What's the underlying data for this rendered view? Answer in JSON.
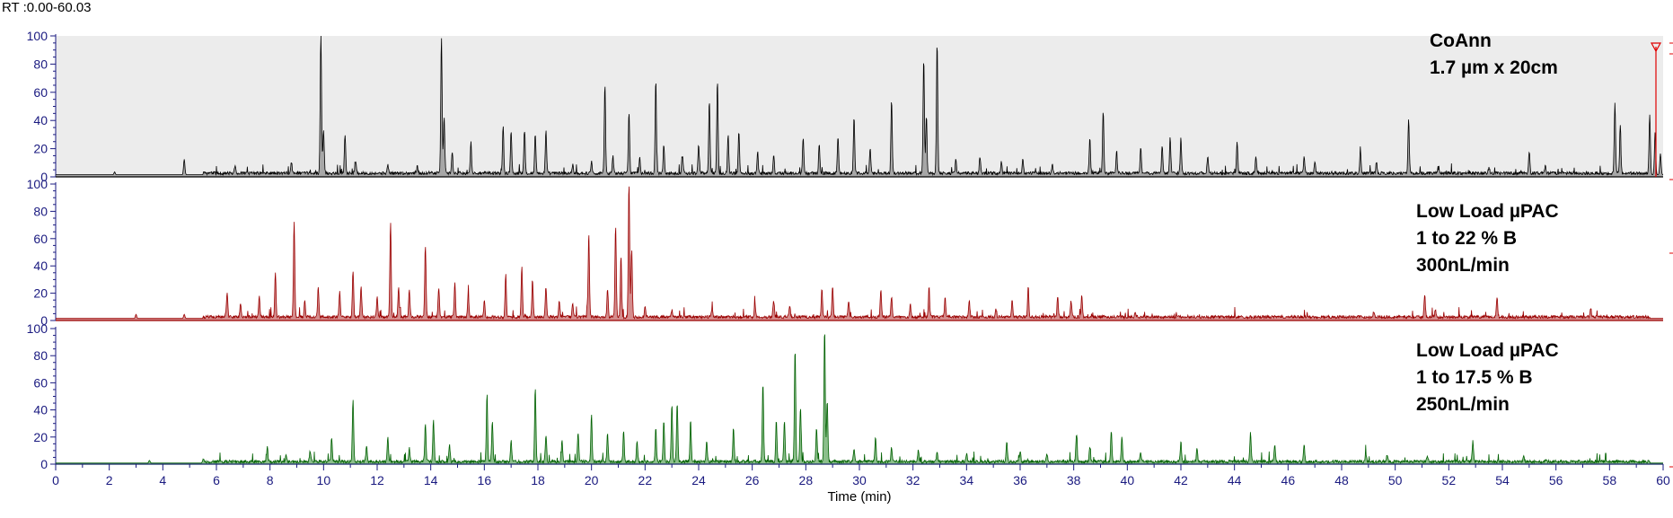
{
  "header": {
    "rt_range": "RT :0.00-60.03"
  },
  "chart_data": {
    "type": "line",
    "xlabel": "Time (min)",
    "xlim": [
      0,
      60
    ],
    "x_ticks": [
      0,
      2,
      4,
      6,
      8,
      10,
      12,
      14,
      16,
      18,
      20,
      22,
      24,
      26,
      28,
      30,
      32,
      34,
      36,
      38,
      40,
      42,
      44,
      46,
      48,
      50,
      52,
      54,
      56,
      58,
      60
    ],
    "ylim": [
      0,
      100
    ],
    "y_ticks": [
      0,
      20,
      40,
      60,
      80,
      100
    ],
    "grid": false,
    "panels": [
      {
        "annotation": [
          "CoAnn",
          "1.7 µm x 20cm"
        ],
        "color": "#000000",
        "fill": "#6f6f6f",
        "background": "#ececec",
        "baseline": 1.5,
        "peaks": [
          [
            2.2,
            2
          ],
          [
            4.8,
            11
          ],
          [
            6.7,
            6
          ],
          [
            8.8,
            8
          ],
          [
            9.9,
            99
          ],
          [
            10.0,
            30
          ],
          [
            10.8,
            28
          ],
          [
            11.2,
            8
          ],
          [
            12.4,
            6
          ],
          [
            13.5,
            5
          ],
          [
            14.4,
            97
          ],
          [
            14.5,
            40
          ],
          [
            14.8,
            15
          ],
          [
            15.5,
            22
          ],
          [
            16.7,
            34
          ],
          [
            17.0,
            30
          ],
          [
            17.5,
            30
          ],
          [
            17.9,
            28
          ],
          [
            18.3,
            30
          ],
          [
            19.3,
            6
          ],
          [
            20.0,
            8
          ],
          [
            20.5,
            63
          ],
          [
            20.8,
            12
          ],
          [
            21.4,
            44
          ],
          [
            21.8,
            12
          ],
          [
            22.4,
            66
          ],
          [
            22.7,
            20
          ],
          [
            23.4,
            12
          ],
          [
            24.0,
            20
          ],
          [
            24.4,
            52
          ],
          [
            24.7,
            65
          ],
          [
            25.1,
            27
          ],
          [
            25.5,
            30
          ],
          [
            26.2,
            15
          ],
          [
            26.8,
            12
          ],
          [
            27.9,
            25
          ],
          [
            28.5,
            20
          ],
          [
            29.2,
            25
          ],
          [
            29.8,
            40
          ],
          [
            30.4,
            17
          ],
          [
            31.2,
            52
          ],
          [
            32.4,
            82
          ],
          [
            32.5,
            40
          ],
          [
            32.9,
            93
          ],
          [
            33.6,
            10
          ],
          [
            34.5,
            12
          ],
          [
            35.3,
            8
          ],
          [
            36.1,
            10
          ],
          [
            37.2,
            6
          ],
          [
            38.6,
            25
          ],
          [
            39.1,
            45
          ],
          [
            39.6,
            15
          ],
          [
            40.5,
            18
          ],
          [
            41.3,
            20
          ],
          [
            41.6,
            25
          ],
          [
            42.0,
            26
          ],
          [
            43.0,
            12
          ],
          [
            44.1,
            22
          ],
          [
            44.8,
            12
          ],
          [
            46.6,
            12
          ],
          [
            47.0,
            8
          ],
          [
            48.7,
            16
          ],
          [
            49.3,
            8
          ],
          [
            50.5,
            38
          ],
          [
            51.6,
            4
          ],
          [
            53.5,
            4
          ],
          [
            55.0,
            15
          ],
          [
            55.6,
            5
          ],
          [
            58.2,
            50
          ],
          [
            58.4,
            35
          ],
          [
            59.5,
            42
          ],
          [
            59.7,
            30
          ],
          [
            59.9,
            15
          ]
        ]
      },
      {
        "annotation": [
          "Low Load µPAC",
          "1 to 22 % B",
          "300nL/min"
        ],
        "color": "#9a0000",
        "fill": "#b03030",
        "background": "#ffffff",
        "baseline": 1.5,
        "peaks": [
          [
            3.0,
            3
          ],
          [
            4.8,
            3
          ],
          [
            6.4,
            18
          ],
          [
            6.9,
            10
          ],
          [
            7.6,
            15
          ],
          [
            8.2,
            32
          ],
          [
            8.9,
            71
          ],
          [
            9.3,
            12
          ],
          [
            9.8,
            22
          ],
          [
            10.6,
            18
          ],
          [
            11.1,
            34
          ],
          [
            11.4,
            22
          ],
          [
            12.0,
            14
          ],
          [
            12.5,
            70
          ],
          [
            12.8,
            22
          ],
          [
            13.2,
            20
          ],
          [
            13.8,
            53
          ],
          [
            14.3,
            22
          ],
          [
            14.9,
            25
          ],
          [
            15.4,
            17
          ],
          [
            16.0,
            12
          ],
          [
            16.8,
            30
          ],
          [
            17.4,
            37
          ],
          [
            17.8,
            25
          ],
          [
            18.3,
            22
          ],
          [
            18.8,
            12
          ],
          [
            19.3,
            10
          ],
          [
            19.9,
            62
          ],
          [
            20.6,
            20
          ],
          [
            20.9,
            67
          ],
          [
            21.1,
            45
          ],
          [
            21.4,
            99
          ],
          [
            21.5,
            50
          ],
          [
            22.0,
            8
          ],
          [
            23.0,
            5
          ],
          [
            24.5,
            6
          ],
          [
            26.1,
            10
          ],
          [
            26.8,
            12
          ],
          [
            27.4,
            8
          ],
          [
            28.6,
            20
          ],
          [
            29.0,
            22
          ],
          [
            29.6,
            12
          ],
          [
            30.8,
            20
          ],
          [
            31.2,
            15
          ],
          [
            31.9,
            10
          ],
          [
            32.6,
            22
          ],
          [
            33.2,
            15
          ],
          [
            34.1,
            12
          ],
          [
            35.1,
            6
          ],
          [
            35.7,
            12
          ],
          [
            36.3,
            22
          ],
          [
            37.4,
            15
          ],
          [
            37.9,
            12
          ],
          [
            38.3,
            15
          ],
          [
            40.3,
            4
          ],
          [
            49.2,
            4
          ],
          [
            51.1,
            17
          ],
          [
            51.5,
            6
          ],
          [
            53.8,
            15
          ],
          [
            57.3,
            6
          ]
        ]
      },
      {
        "annotation": [
          "Low Load µPAC",
          "1 to 17.5 % B",
          "250nL/min"
        ],
        "color": "#006000",
        "fill": "#2e8b2e",
        "background": "#ffffff",
        "baseline": 0.8,
        "peaks": [
          [
            3.5,
            2
          ],
          [
            5.5,
            2
          ],
          [
            7.9,
            11
          ],
          [
            8.6,
            5
          ],
          [
            9.5,
            8
          ],
          [
            10.3,
            18
          ],
          [
            11.1,
            46
          ],
          [
            11.6,
            12
          ],
          [
            12.4,
            18
          ],
          [
            13.2,
            10
          ],
          [
            13.8,
            28
          ],
          [
            14.1,
            30
          ],
          [
            14.7,
            12
          ],
          [
            16.1,
            50
          ],
          [
            16.3,
            30
          ],
          [
            17.0,
            15
          ],
          [
            17.9,
            54
          ],
          [
            18.3,
            20
          ],
          [
            18.9,
            15
          ],
          [
            19.5,
            22
          ],
          [
            20.0,
            35
          ],
          [
            20.6,
            20
          ],
          [
            21.2,
            22
          ],
          [
            21.7,
            15
          ],
          [
            22.4,
            25
          ],
          [
            22.7,
            30
          ],
          [
            23.0,
            42
          ],
          [
            23.2,
            43
          ],
          [
            23.7,
            30
          ],
          [
            24.3,
            15
          ],
          [
            25.3,
            25
          ],
          [
            26.4,
            58
          ],
          [
            26.9,
            30
          ],
          [
            27.2,
            30
          ],
          [
            27.6,
            84
          ],
          [
            27.8,
            40
          ],
          [
            28.4,
            25
          ],
          [
            28.7,
            99
          ],
          [
            28.8,
            45
          ],
          [
            29.8,
            10
          ],
          [
            30.6,
            18
          ],
          [
            31.2,
            10
          ],
          [
            32.2,
            8
          ],
          [
            32.9,
            6
          ],
          [
            34.0,
            6
          ],
          [
            35.5,
            15
          ],
          [
            36.0,
            8
          ],
          [
            37.0,
            6
          ],
          [
            38.1,
            20
          ],
          [
            38.6,
            10
          ],
          [
            39.4,
            22
          ],
          [
            39.8,
            18
          ],
          [
            40.5,
            6
          ],
          [
            42.0,
            15
          ],
          [
            42.6,
            10
          ],
          [
            44.6,
            21
          ],
          [
            45.5,
            12
          ],
          [
            46.6,
            12
          ],
          [
            48.9,
            6
          ],
          [
            49.7,
            5
          ],
          [
            51.2,
            4
          ],
          [
            52.9,
            15
          ],
          [
            54.8,
            4
          ]
        ]
      }
    ]
  }
}
